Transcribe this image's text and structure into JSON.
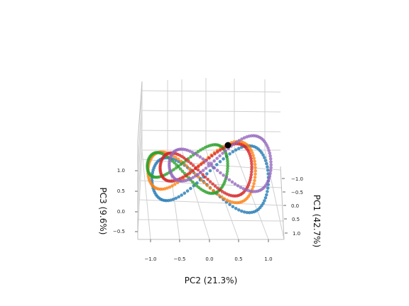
{
  "chart_data": {
    "type": "scatter",
    "projection": "3d",
    "title": "",
    "xlabel": "PC2 (21.3%)",
    "ylabel": "PC1 (42.7%)",
    "zlabel": "PC3 (9.6%)",
    "pc2_ticks": [
      "−1.0",
      "−0.5",
      "0.0",
      "0.5",
      "1.0"
    ],
    "pc1_ticks": [
      "−1.0",
      "−0.5",
      "0.0",
      "0.5",
      "1.0"
    ],
    "pc3_ticks": [
      "1.0",
      "0.5",
      "0.0",
      "−0.5"
    ],
    "grid": true,
    "legend": "none",
    "series": [
      {
        "color": "#1f77b4",
        "marker_size": 4
      },
      {
        "color": "#ff7f0e",
        "marker_size": 4
      },
      {
        "color": "#2ca02c",
        "marker_size": 4
      },
      {
        "color": "#d62728",
        "marker_size": 4
      },
      {
        "color": "#9467bd",
        "marker_size": 4
      }
    ],
    "start_point": {
      "color": "#000000"
    }
  }
}
